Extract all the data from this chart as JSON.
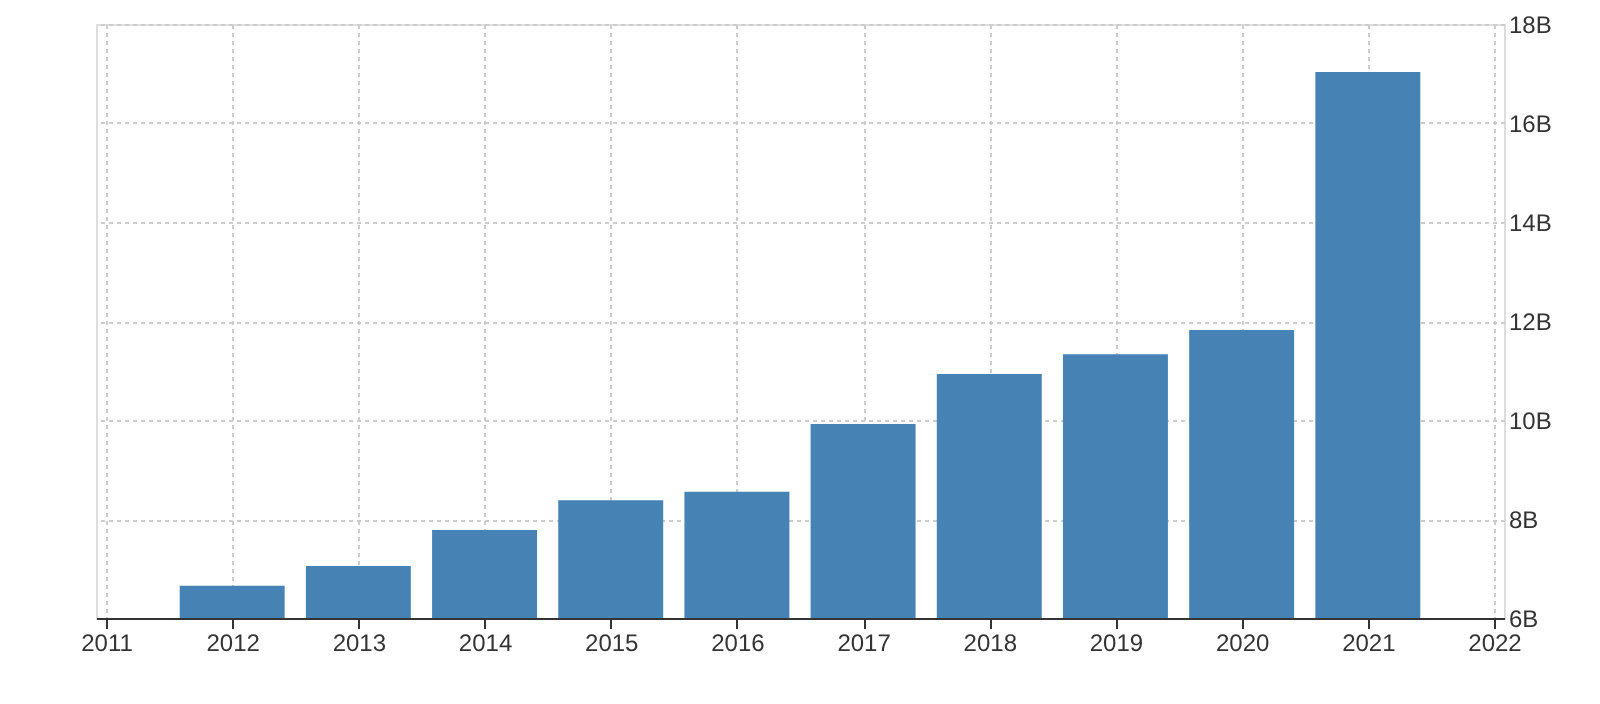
{
  "chart_data": {
    "type": "bar",
    "x": [
      2012,
      2013,
      2014,
      2015,
      2016,
      2017,
      2018,
      2019,
      2020,
      2021
    ],
    "values": [
      6.65,
      7.05,
      7.78,
      8.38,
      8.55,
      9.92,
      10.93,
      11.33,
      11.82,
      17.03
    ],
    "color": "#4682b4",
    "xlim": [
      2011,
      2022
    ],
    "xticks": [
      2011,
      2012,
      2013,
      2014,
      2015,
      2016,
      2017,
      2018,
      2019,
      2020,
      2021,
      2022
    ],
    "ylim": [
      6,
      18
    ],
    "yticks": [
      {
        "value": 6,
        "label": "6B"
      },
      {
        "value": 8,
        "label": "8B"
      },
      {
        "value": 10,
        "label": "10B"
      },
      {
        "value": 12,
        "label": "12B"
      },
      {
        "value": 14,
        "label": "14B"
      },
      {
        "value": 16,
        "label": "16B"
      },
      {
        "value": 18,
        "label": "18B"
      }
    ],
    "grid": true
  }
}
